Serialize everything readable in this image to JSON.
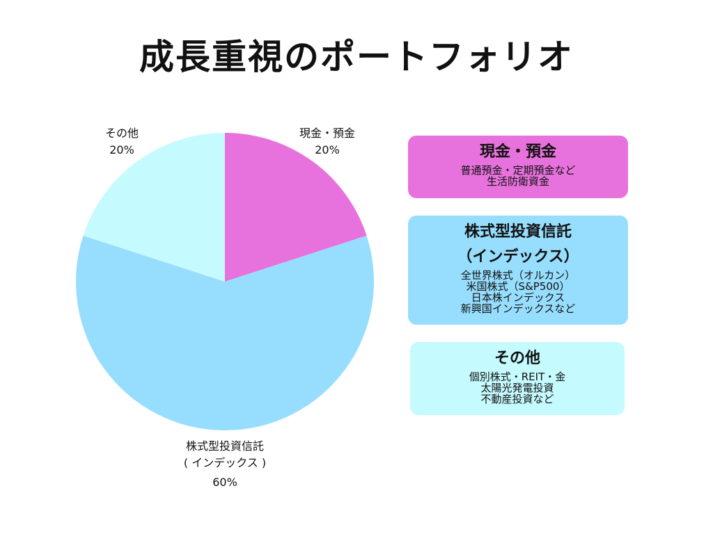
{
  "title": "成長重視のポートフォリオ",
  "chart_data": {
    "type": "pie",
    "slices": [
      {
        "label": "現金・預金",
        "value": 20,
        "value_label": "20%",
        "color": "#E872DD"
      },
      {
        "label_lines": [
          "株式型投資信託",
          "( インデックス )"
        ],
        "value": 60,
        "value_label": "60%",
        "color": "#97DEFE"
      },
      {
        "label": "その他",
        "value": 20,
        "value_label": "20%",
        "color": "#C5FAFE"
      }
    ],
    "start": "top",
    "direction": "clockwise"
  },
  "legend_boxes": [
    {
      "heading_lines": [
        "現金・預金"
      ],
      "details": [
        "普通預金・定期預金など",
        "生活防衛資金"
      ],
      "color": "#E872DD"
    },
    {
      "heading_lines": [
        "株式型投資信託",
        "（インデックス）"
      ],
      "details": [
        "全世界株式（オルカン）",
        "米国株式（S&P500）",
        "日本株インデックス",
        "新興国インデックスなど"
      ],
      "color": "#97DEFE"
    },
    {
      "heading_lines": [
        "その他"
      ],
      "details": [
        "個別株式・REIT・金",
        "太陽光発電投資",
        "不動産投資など"
      ],
      "color": "#C5FAFE"
    }
  ]
}
